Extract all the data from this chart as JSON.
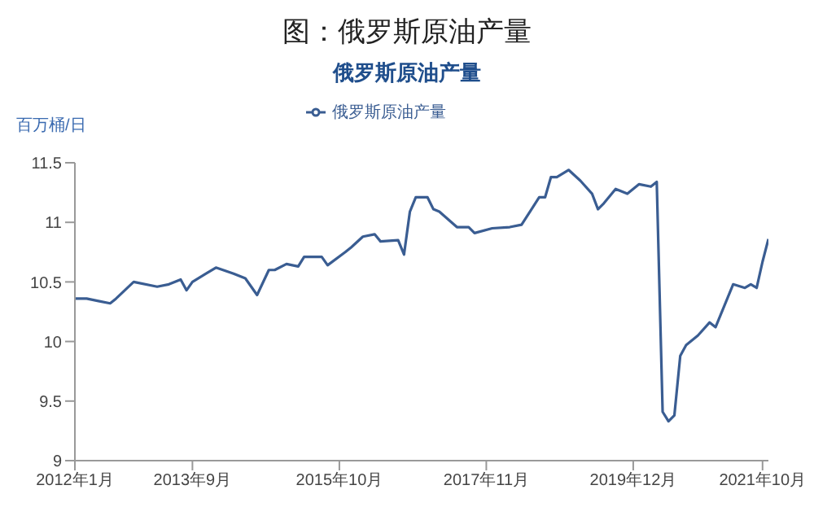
{
  "chart_data": {
    "type": "line",
    "title": "图：俄罗斯原油产量",
    "subtitle": "俄罗斯原油产量",
    "ylabel": "百万桶/日",
    "x": [
      "2012-01",
      "2012-03",
      "2012-05",
      "2012-07",
      "2012-08",
      "2012-11",
      "2013-03",
      "2013-05",
      "2013-07",
      "2013-08",
      "2013-09",
      "2014-01",
      "2014-04",
      "2014-06",
      "2014-08",
      "2014-10",
      "2014-11",
      "2015-01",
      "2015-03",
      "2015-04",
      "2015-07",
      "2015-08",
      "2015-11",
      "2015-12",
      "2016-02",
      "2016-04",
      "2016-05",
      "2016-08",
      "2016-09",
      "2016-10",
      "2016-11",
      "2017-01",
      "2017-02",
      "2017-03",
      "2017-06",
      "2017-08",
      "2017-09",
      "2017-12",
      "2018-03",
      "2018-05",
      "2018-08",
      "2018-09",
      "2018-10",
      "2018-11",
      "2019-01",
      "2019-03",
      "2019-05",
      "2019-06",
      "2019-07",
      "2019-09",
      "2019-11",
      "2020-01",
      "2020-03",
      "2020-04",
      "2020-05",
      "2020-06",
      "2020-07",
      "2020-08",
      "2020-09",
      "2020-11",
      "2021-01",
      "2021-02",
      "2021-05",
      "2021-07",
      "2021-08",
      "2021-09",
      "2021-10",
      "2021-11"
    ],
    "series": [
      {
        "name": "俄罗斯原油产量",
        "color": "#3a5d92",
        "values": [
          10.36,
          10.36,
          10.34,
          10.32,
          10.36,
          10.5,
          10.46,
          10.48,
          10.52,
          10.43,
          10.5,
          10.62,
          10.57,
          10.53,
          10.39,
          10.6,
          10.6,
          10.65,
          10.63,
          10.71,
          10.71,
          10.64,
          10.75,
          10.79,
          10.88,
          10.9,
          10.84,
          10.85,
          10.73,
          11.09,
          11.21,
          11.21,
          11.11,
          11.09,
          10.96,
          10.96,
          10.91,
          10.95,
          10.96,
          10.98,
          11.21,
          11.21,
          11.38,
          11.38,
          11.44,
          11.35,
          11.24,
          11.11,
          11.16,
          11.28,
          11.24,
          11.32,
          11.3,
          11.34,
          9.41,
          9.33,
          9.38,
          9.88,
          9.97,
          10.05,
          10.16,
          10.12,
          10.48,
          10.45,
          10.48,
          10.45,
          10.67,
          10.86
        ]
      }
    ],
    "xlim": [
      "2012-01",
      "2021-11"
    ],
    "xticks": [
      {
        "value": "2012-01",
        "label": "2012年1月"
      },
      {
        "value": "2013-09",
        "label": "2013年9月"
      },
      {
        "value": "2015-10",
        "label": "2015年10月"
      },
      {
        "value": "2017-11",
        "label": "2017年11月"
      },
      {
        "value": "2019-12",
        "label": "2019年12月"
      },
      {
        "value": "2021-10",
        "label": "2021年10月"
      }
    ],
    "ylim": [
      9,
      11.5
    ],
    "yticks": [
      9,
      9.5,
      10,
      10.5,
      11,
      11.5
    ],
    "grid": false,
    "legend": "top",
    "marker": "none",
    "line_style": "solid"
  }
}
